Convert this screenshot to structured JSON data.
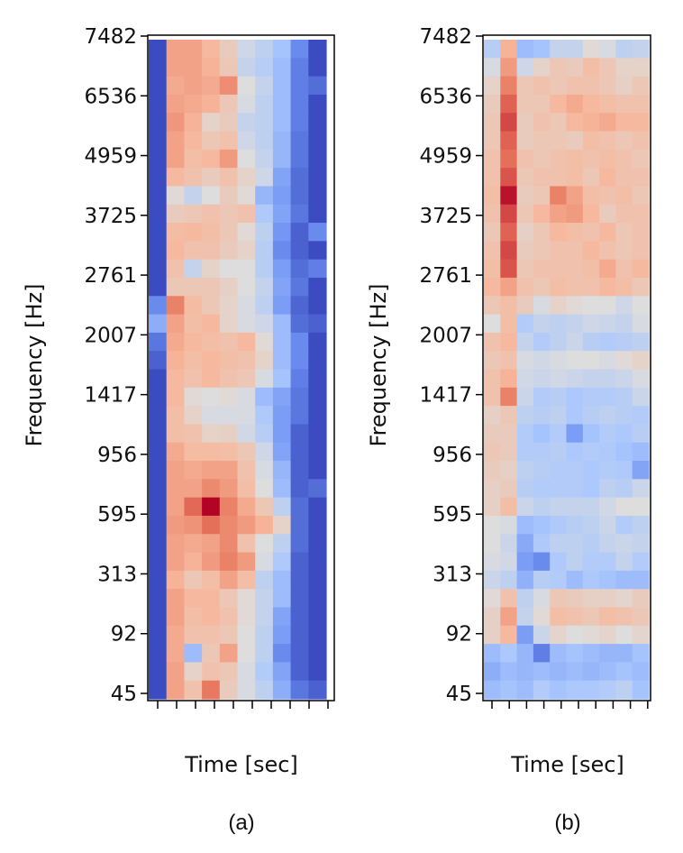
{
  "chart_data": [
    {
      "type": "heatmap",
      "panel_label": "(a)",
      "xlabel": "Time [sec]",
      "ylabel": "Frequency [Hz]",
      "yticks": [
        "7482",
        "6536",
        "4959",
        "3725",
        "2761",
        "2007",
        "1417",
        "956",
        "595",
        "313",
        "92",
        "45"
      ],
      "x_tick_count": 10,
      "colormap": "coolwarm",
      "colormap_stops": [
        "#3b4cc0",
        "#6f92f3",
        "#aac7fd",
        "#dddddd",
        "#f7b89c",
        "#e7745b",
        "#b40426"
      ],
      "value_range": [
        0,
        1
      ],
      "n_rows": 36,
      "n_cols": 10,
      "values_top_to_bottom": [
        [
          0.0,
          0.72,
          0.72,
          0.66,
          0.58,
          0.45,
          0.4,
          0.32,
          0.15,
          0.0
        ],
        [
          0.0,
          0.72,
          0.72,
          0.68,
          0.6,
          0.42,
          0.38,
          0.3,
          0.12,
          0.0
        ],
        [
          0.0,
          0.7,
          0.72,
          0.7,
          0.77,
          0.5,
          0.42,
          0.3,
          0.12,
          0.08
        ],
        [
          0.0,
          0.72,
          0.7,
          0.68,
          0.6,
          0.48,
          0.4,
          0.3,
          0.12,
          0.0
        ],
        [
          0.0,
          0.75,
          0.68,
          0.55,
          0.58,
          0.42,
          0.4,
          0.3,
          0.12,
          0.0
        ],
        [
          0.0,
          0.72,
          0.66,
          0.6,
          0.62,
          0.45,
          0.4,
          0.28,
          0.1,
          0.0
        ],
        [
          0.0,
          0.72,
          0.64,
          0.66,
          0.74,
          0.5,
          0.42,
          0.28,
          0.1,
          0.0
        ],
        [
          0.0,
          0.66,
          0.62,
          0.58,
          0.62,
          0.55,
          0.45,
          0.22,
          0.08,
          0.0
        ],
        [
          0.0,
          0.52,
          0.42,
          0.5,
          0.58,
          0.52,
          0.28,
          0.2,
          0.08,
          0.0
        ],
        [
          0.0,
          0.58,
          0.6,
          0.62,
          0.6,
          0.62,
          0.35,
          0.22,
          0.1,
          0.0
        ],
        [
          0.0,
          0.65,
          0.66,
          0.64,
          0.6,
          0.52,
          0.4,
          0.18,
          0.05,
          0.15
        ],
        [
          0.0,
          0.66,
          0.62,
          0.62,
          0.58,
          0.55,
          0.38,
          0.15,
          0.05,
          0.0
        ],
        [
          0.0,
          0.62,
          0.42,
          0.55,
          0.5,
          0.5,
          0.38,
          0.2,
          0.08,
          0.12
        ],
        [
          0.0,
          0.6,
          0.6,
          0.6,
          0.56,
          0.5,
          0.42,
          0.22,
          0.1,
          0.0
        ],
        [
          0.15,
          0.8,
          0.65,
          0.6,
          0.55,
          0.48,
          0.4,
          0.2,
          0.06,
          0.0
        ],
        [
          0.25,
          0.72,
          0.64,
          0.66,
          0.55,
          0.48,
          0.45,
          0.3,
          0.08,
          0.05
        ],
        [
          0.1,
          0.7,
          0.66,
          0.64,
          0.62,
          0.66,
          0.52,
          0.3,
          0.15,
          0.0
        ],
        [
          0.05,
          0.68,
          0.64,
          0.66,
          0.64,
          0.62,
          0.55,
          0.3,
          0.15,
          0.0
        ],
        [
          0.0,
          0.66,
          0.62,
          0.66,
          0.62,
          0.6,
          0.48,
          0.32,
          0.12,
          0.0
        ],
        [
          0.0,
          0.66,
          0.52,
          0.5,
          0.52,
          0.48,
          0.3,
          0.22,
          0.1,
          0.0
        ],
        [
          0.0,
          0.64,
          0.55,
          0.48,
          0.48,
          0.48,
          0.35,
          0.2,
          0.1,
          0.0
        ],
        [
          0.0,
          0.64,
          0.62,
          0.55,
          0.56,
          0.46,
          0.38,
          0.2,
          0.05,
          0.0
        ],
        [
          0.0,
          0.7,
          0.65,
          0.65,
          0.64,
          0.6,
          0.45,
          0.22,
          0.05,
          0.0
        ],
        [
          0.0,
          0.72,
          0.7,
          0.72,
          0.72,
          0.62,
          0.48,
          0.28,
          0.05,
          0.0
        ],
        [
          0.0,
          0.72,
          0.72,
          0.78,
          0.74,
          0.64,
          0.5,
          0.3,
          0.05,
          0.08
        ],
        [
          0.0,
          0.72,
          0.85,
          1.0,
          0.8,
          0.7,
          0.6,
          0.4,
          0.08,
          0.0
        ],
        [
          0.0,
          0.74,
          0.76,
          0.84,
          0.78,
          0.74,
          0.68,
          0.55,
          0.08,
          0.0
        ],
        [
          0.0,
          0.72,
          0.7,
          0.72,
          0.78,
          0.62,
          0.5,
          0.4,
          0.08,
          0.0
        ],
        [
          0.0,
          0.72,
          0.68,
          0.74,
          0.8,
          0.74,
          0.48,
          0.35,
          0.05,
          0.0
        ],
        [
          0.0,
          0.68,
          0.6,
          0.64,
          0.72,
          0.64,
          0.4,
          0.3,
          0.05,
          0.0
        ],
        [
          0.0,
          0.72,
          0.66,
          0.66,
          0.6,
          0.52,
          0.42,
          0.3,
          0.05,
          0.0
        ],
        [
          0.0,
          0.72,
          0.64,
          0.66,
          0.62,
          0.52,
          0.42,
          0.22,
          0.05,
          0.0
        ],
        [
          0.0,
          0.7,
          0.62,
          0.62,
          0.6,
          0.5,
          0.4,
          0.2,
          0.05,
          0.0
        ],
        [
          0.0,
          0.7,
          0.3,
          0.6,
          0.72,
          0.5,
          0.4,
          0.15,
          0.05,
          0.0
        ],
        [
          0.0,
          0.72,
          0.55,
          0.62,
          0.6,
          0.48,
          0.36,
          0.22,
          0.05,
          0.0
        ],
        [
          0.0,
          0.72,
          0.62,
          0.82,
          0.58,
          0.48,
          0.4,
          0.25,
          0.1,
          0.05
        ]
      ]
    },
    {
      "type": "heatmap",
      "panel_label": "(b)",
      "xlabel": "Time [sec]",
      "ylabel": "Frequency [Hz]",
      "yticks": [
        "7482",
        "6536",
        "4959",
        "3725",
        "2761",
        "2007",
        "1417",
        "956",
        "595",
        "313",
        "92",
        "45"
      ],
      "x_tick_count": 10,
      "colormap": "coolwarm",
      "colormap_stops": [
        "#3b4cc0",
        "#6f92f3",
        "#aac7fd",
        "#dddddd",
        "#f7b89c",
        "#e7745b",
        "#b40426"
      ],
      "value_range": [
        0,
        1
      ],
      "n_rows": 36,
      "n_cols": 10,
      "values_top_to_bottom": [
        [
          0.38,
          0.68,
          0.3,
          0.32,
          0.42,
          0.42,
          0.52,
          0.48,
          0.4,
          0.42
        ],
        [
          0.48,
          0.74,
          0.45,
          0.55,
          0.6,
          0.58,
          0.64,
          0.6,
          0.55,
          0.55
        ],
        [
          0.55,
          0.8,
          0.6,
          0.62,
          0.6,
          0.62,
          0.62,
          0.6,
          0.56,
          0.6
        ],
        [
          0.58,
          0.86,
          0.6,
          0.6,
          0.66,
          0.7,
          0.66,
          0.64,
          0.62,
          0.62
        ],
        [
          0.6,
          0.9,
          0.58,
          0.62,
          0.6,
          0.66,
          0.68,
          0.7,
          0.66,
          0.66
        ],
        [
          0.6,
          0.86,
          0.58,
          0.6,
          0.6,
          0.58,
          0.64,
          0.62,
          0.6,
          0.62
        ],
        [
          0.62,
          0.84,
          0.62,
          0.6,
          0.62,
          0.64,
          0.62,
          0.64,
          0.62,
          0.6
        ],
        [
          0.62,
          0.88,
          0.6,
          0.62,
          0.62,
          0.64,
          0.6,
          0.66,
          0.62,
          0.62
        ],
        [
          0.64,
          0.98,
          0.58,
          0.6,
          0.8,
          0.72,
          0.64,
          0.62,
          0.64,
          0.6
        ],
        [
          0.62,
          0.9,
          0.6,
          0.66,
          0.72,
          0.74,
          0.66,
          0.58,
          0.62,
          0.62
        ],
        [
          0.6,
          0.86,
          0.56,
          0.6,
          0.66,
          0.64,
          0.62,
          0.66,
          0.6,
          0.62
        ],
        [
          0.62,
          0.9,
          0.58,
          0.6,
          0.62,
          0.62,
          0.66,
          0.62,
          0.6,
          0.62
        ],
        [
          0.64,
          0.88,
          0.6,
          0.62,
          0.62,
          0.62,
          0.64,
          0.7,
          0.62,
          0.66
        ],
        [
          0.66,
          0.72,
          0.62,
          0.6,
          0.64,
          0.62,
          0.62,
          0.66,
          0.64,
          0.6
        ],
        [
          0.6,
          0.64,
          0.58,
          0.48,
          0.55,
          0.52,
          0.5,
          0.5,
          0.45,
          0.5
        ],
        [
          0.5,
          0.64,
          0.36,
          0.42,
          0.4,
          0.42,
          0.45,
          0.44,
          0.42,
          0.48
        ],
        [
          0.62,
          0.66,
          0.42,
          0.36,
          0.4,
          0.44,
          0.38,
          0.36,
          0.38,
          0.4
        ],
        [
          0.6,
          0.62,
          0.48,
          0.46,
          0.48,
          0.5,
          0.5,
          0.48,
          0.52,
          0.55
        ],
        [
          0.62,
          0.68,
          0.46,
          0.44,
          0.46,
          0.44,
          0.42,
          0.42,
          0.44,
          0.48
        ],
        [
          0.62,
          0.8,
          0.44,
          0.36,
          0.38,
          0.34,
          0.36,
          0.36,
          0.38,
          0.44
        ],
        [
          0.56,
          0.6,
          0.4,
          0.38,
          0.4,
          0.34,
          0.38,
          0.4,
          0.38,
          0.36
        ],
        [
          0.58,
          0.58,
          0.36,
          0.32,
          0.36,
          0.2,
          0.32,
          0.36,
          0.34,
          0.38
        ],
        [
          0.6,
          0.58,
          0.36,
          0.36,
          0.38,
          0.34,
          0.36,
          0.35,
          0.32,
          0.3
        ],
        [
          0.58,
          0.56,
          0.4,
          0.38,
          0.36,
          0.36,
          0.34,
          0.36,
          0.35,
          0.22
        ],
        [
          0.56,
          0.58,
          0.38,
          0.36,
          0.36,
          0.36,
          0.34,
          0.4,
          0.38,
          0.44
        ],
        [
          0.56,
          0.64,
          0.44,
          0.4,
          0.42,
          0.42,
          0.42,
          0.46,
          0.5,
          0.5
        ],
        [
          0.5,
          0.48,
          0.3,
          0.32,
          0.35,
          0.38,
          0.4,
          0.44,
          0.36,
          0.4
        ],
        [
          0.5,
          0.44,
          0.24,
          0.35,
          0.4,
          0.4,
          0.38,
          0.42,
          0.44,
          0.42
        ],
        [
          0.48,
          0.46,
          0.2,
          0.15,
          0.35,
          0.4,
          0.36,
          0.36,
          0.42,
          0.36
        ],
        [
          0.44,
          0.4,
          0.26,
          0.38,
          0.36,
          0.3,
          0.34,
          0.32,
          0.3,
          0.3
        ],
        [
          0.52,
          0.62,
          0.4,
          0.48,
          0.6,
          0.58,
          0.56,
          0.56,
          0.54,
          0.58
        ],
        [
          0.56,
          0.72,
          0.42,
          0.52,
          0.64,
          0.62,
          0.6,
          0.64,
          0.62,
          0.6
        ],
        [
          0.56,
          0.66,
          0.2,
          0.44,
          0.54,
          0.5,
          0.52,
          0.54,
          0.5,
          0.54
        ],
        [
          0.3,
          0.34,
          0.28,
          0.12,
          0.3,
          0.32,
          0.3,
          0.28,
          0.28,
          0.32
        ],
        [
          0.25,
          0.3,
          0.28,
          0.3,
          0.28,
          0.3,
          0.28,
          0.3,
          0.32,
          0.3
        ],
        [
          0.3,
          0.32,
          0.3,
          0.36,
          0.32,
          0.34,
          0.34,
          0.36,
          0.4,
          0.32
        ]
      ]
    }
  ]
}
